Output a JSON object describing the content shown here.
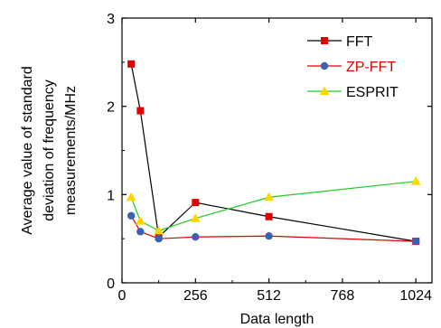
{
  "chart_data": {
    "type": "line",
    "xlabel": "Data length",
    "ylabel_lines": [
      "Average value of standard",
      "deviation of frequency",
      "measurements/MHz"
    ],
    "xlim": [
      0,
      1080
    ],
    "ylim": [
      0,
      3
    ],
    "xticks": [
      0,
      256,
      512,
      768,
      1024
    ],
    "yticks": [
      0,
      1,
      2,
      3
    ],
    "grid": false,
    "legend_position": "top-right",
    "series": [
      {
        "name": "FFT",
        "color": "#000000",
        "marker_color": "#e00000",
        "marker": "square",
        "label_color": "#000000",
        "x": [
          32,
          64,
          128,
          256,
          512,
          1024
        ],
        "y": [
          2.48,
          1.95,
          0.52,
          0.91,
          0.75,
          0.47
        ]
      },
      {
        "name": "ZP-FFT",
        "color": "#e00000",
        "marker_color": "#3a62b0",
        "marker": "circle",
        "label_color": "#e00000",
        "x": [
          32,
          64,
          128,
          256,
          512,
          1024
        ],
        "y": [
          0.76,
          0.58,
          0.5,
          0.52,
          0.53,
          0.47
        ]
      },
      {
        "name": "ESPRIT",
        "color": "#22cc22",
        "marker_color": "#ffd700",
        "marker": "triangle",
        "label_color": "#000000",
        "x": [
          32,
          64,
          128,
          256,
          512,
          1024
        ],
        "y": [
          0.97,
          0.7,
          0.59,
          0.73,
          0.97,
          1.15
        ]
      }
    ]
  }
}
